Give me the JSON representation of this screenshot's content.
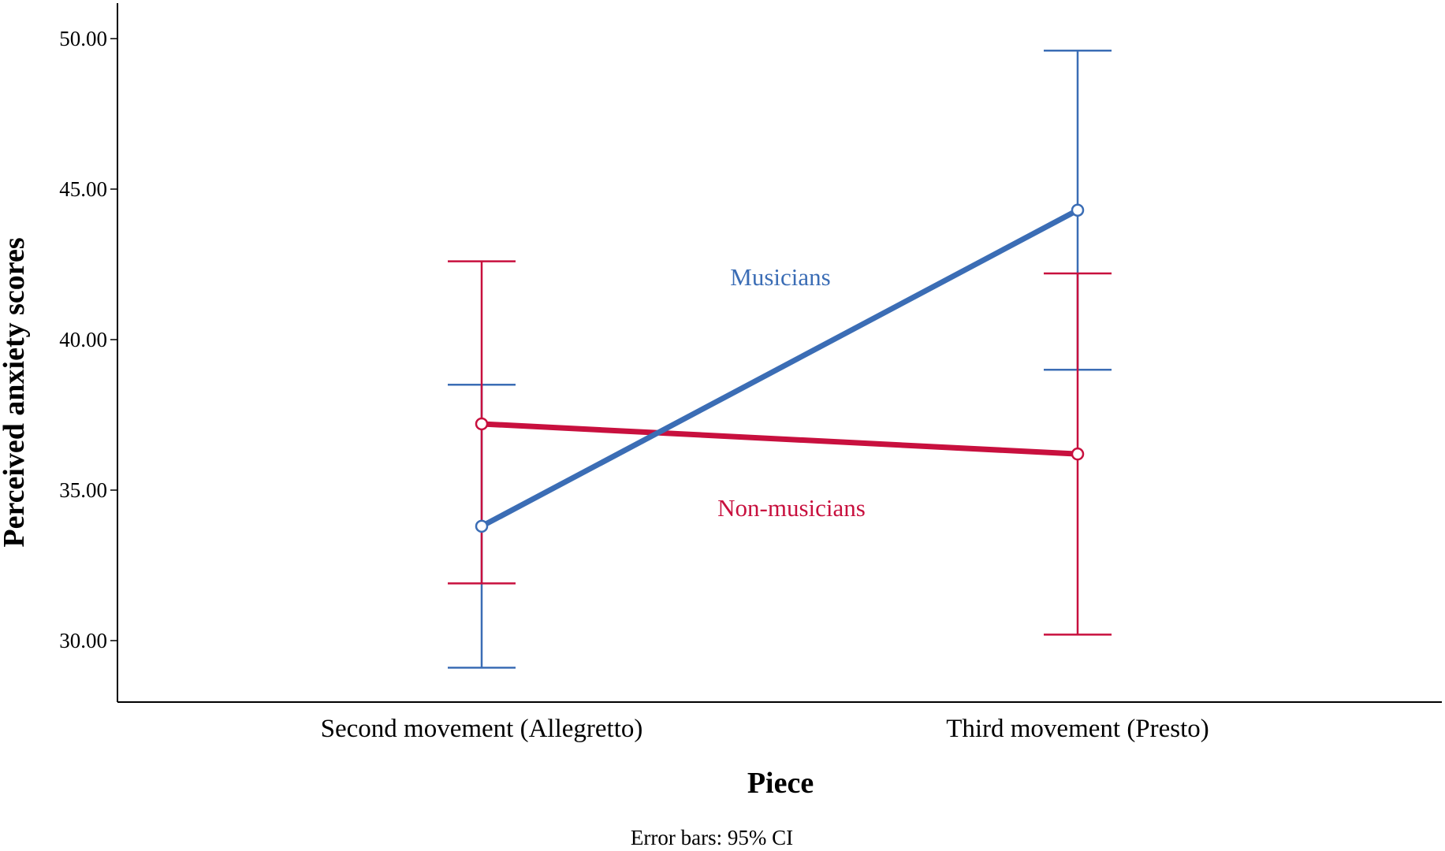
{
  "chart_data": {
    "type": "line",
    "xlabel": "Piece",
    "ylabel": "Perceived anxiety scores",
    "categories": [
      "Second movement (Allegretto)",
      "Third movement (Presto)"
    ],
    "ylim": [
      28.0,
      50.0
    ],
    "yticks": [
      "30.00",
      "35.00",
      "40.00",
      "45.00",
      "50.00"
    ],
    "grid": false,
    "legend": "inline labels",
    "footnote": "Error bars: 95% CI",
    "series": [
      {
        "name": "Musicians",
        "color": "#3b6db5",
        "values": [
          33.8,
          44.3
        ],
        "ci_low": [
          29.1,
          39.0
        ],
        "ci_high": [
          38.5,
          49.6
        ]
      },
      {
        "name": "Non-musicians",
        "color": "#c8103e",
        "values": [
          37.2,
          36.2
        ],
        "ci_low": [
          31.9,
          30.2
        ],
        "ci_high": [
          42.6,
          42.2
        ]
      }
    ]
  }
}
